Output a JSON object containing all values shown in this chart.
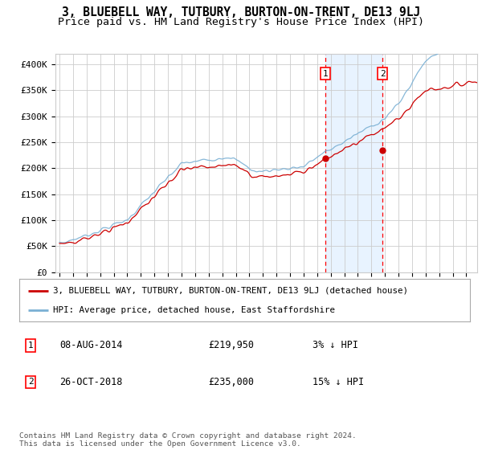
{
  "title": "3, BLUEBELL WAY, TUTBURY, BURTON-ON-TRENT, DE13 9LJ",
  "subtitle": "Price paid vs. HM Land Registry's House Price Index (HPI)",
  "ylim": [
    0,
    420000
  ],
  "yticks": [
    0,
    50000,
    100000,
    150000,
    200000,
    250000,
    300000,
    350000,
    400000
  ],
  "ytick_labels": [
    "£0",
    "£50K",
    "£100K",
    "£150K",
    "£200K",
    "£250K",
    "£300K",
    "£350K",
    "£400K"
  ],
  "hpi_color": "#7ab0d4",
  "price_color": "#cc0000",
  "transaction1_date": 2014.62,
  "transaction1_price": 219950,
  "transaction2_date": 2018.82,
  "transaction2_price": 235000,
  "legend_property": "3, BLUEBELL WAY, TUTBURY, BURTON-ON-TRENT, DE13 9LJ (detached house)",
  "legend_hpi": "HPI: Average price, detached house, East Staffordshire",
  "footnote": "Contains HM Land Registry data © Crown copyright and database right 2024.\nThis data is licensed under the Open Government Licence v3.0.",
  "background_color": "#ffffff",
  "grid_color": "#cccccc",
  "shaded_color": "#ddeeff",
  "title_fontsize": 10.5,
  "subtitle_fontsize": 9.5
}
